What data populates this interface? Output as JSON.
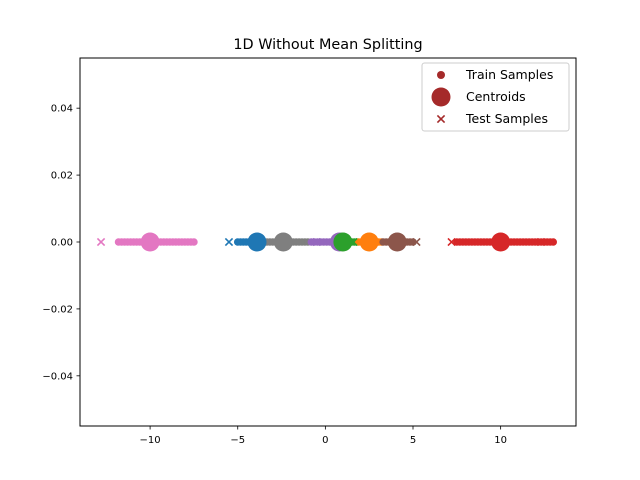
{
  "chart_data": {
    "type": "scatter",
    "title": "1D Without Mean Splitting",
    "xlabel": "",
    "ylabel": "",
    "xlim": [
      -14.0,
      14.3
    ],
    "ylim": [
      -0.055,
      0.055
    ],
    "x_ticks": [
      -10,
      -5,
      0,
      5,
      10
    ],
    "x_tick_labels": [
      "−10",
      "−5",
      "0",
      "5",
      "10"
    ],
    "y_ticks": [
      -0.04,
      -0.02,
      0.0,
      0.02,
      0.04
    ],
    "y_tick_labels": [
      "−0.04",
      "−0.02",
      "0.00",
      "0.02",
      "0.04"
    ],
    "grid": false,
    "legend": {
      "position": "top-right",
      "entries": [
        {
          "label": "Train Samples",
          "marker": "circle-small",
          "color": "#a52a2a"
        },
        {
          "label": "Centroids",
          "marker": "circle-large",
          "color": "#a52a2a"
        },
        {
          "label": "Test Samples",
          "marker": "x",
          "color": "#a52a2a"
        }
      ]
    },
    "clusters": [
      {
        "color": "#e377c2",
        "centroid": -10.0,
        "train_min": -11.8,
        "train_max": -7.5,
        "test": [
          -12.8
        ]
      },
      {
        "color": "#1f77b4",
        "centroid": -3.9,
        "train_min": -5.0,
        "train_max": -4.2,
        "test": [
          -5.5
        ]
      },
      {
        "color": "#7f7f7f",
        "centroid": -2.4,
        "train_min": -3.5,
        "train_max": -1.0,
        "test": []
      },
      {
        "color": "#9467bd",
        "centroid": 0.8,
        "train_min": -0.8,
        "train_max": 0.6,
        "test": [
          -0.5
        ]
      },
      {
        "color": "#2ca02c",
        "centroid": 1.0,
        "train_min": 1.2,
        "train_max": 1.8,
        "test": [
          1.6
        ]
      },
      {
        "color": "#ff7f0e",
        "centroid": 2.5,
        "train_min": 1.9,
        "train_max": 3.2,
        "test": []
      },
      {
        "color": "#8c564b",
        "centroid": 4.1,
        "train_min": 3.3,
        "train_max": 5.0,
        "test": [
          5.2
        ]
      },
      {
        "color": "#d62728",
        "centroid": 10.0,
        "train_min": 7.5,
        "train_max": 13.0,
        "test": [
          7.2,
          12.3
        ]
      }
    ]
  }
}
